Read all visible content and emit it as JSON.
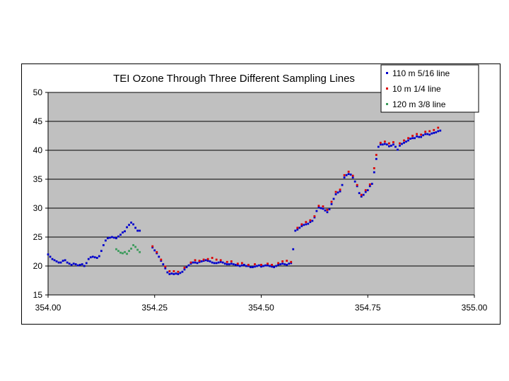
{
  "chart_data": {
    "type": "scatter",
    "title": "TEI Ozone Through Three Different Sampling Lines",
    "xlabel": "",
    "ylabel": "",
    "xlim": [
      354.0,
      355.0
    ],
    "ylim": [
      15,
      50
    ],
    "x_ticks": [
      "354.00",
      "354.25",
      "354.50",
      "354.75",
      "355.00"
    ],
    "y_ticks": [
      "15",
      "20",
      "25",
      "30",
      "35",
      "40",
      "45",
      "50"
    ],
    "grid": "horizontal",
    "legend_position": "top-right",
    "plot_background": "#c0c0c0",
    "series": [
      {
        "name": "110 m 5/16 line",
        "color": "#0000cc",
        "points": [
          [
            354.0,
            22.0
          ],
          [
            354.005,
            21.6
          ],
          [
            354.01,
            21.2
          ],
          [
            354.015,
            21.0
          ],
          [
            354.02,
            20.8
          ],
          [
            354.025,
            20.6
          ],
          [
            354.03,
            20.6
          ],
          [
            354.035,
            20.9
          ],
          [
            354.04,
            21.0
          ],
          [
            354.045,
            20.6
          ],
          [
            354.05,
            20.4
          ],
          [
            354.055,
            20.2
          ],
          [
            354.06,
            20.4
          ],
          [
            354.065,
            20.3
          ],
          [
            354.07,
            20.1
          ],
          [
            354.075,
            20.2
          ],
          [
            354.08,
            20.3
          ],
          [
            354.085,
            20.0
          ],
          [
            354.09,
            20.5
          ],
          [
            354.095,
            21.2
          ],
          [
            354.1,
            21.5
          ],
          [
            354.105,
            21.6
          ],
          [
            354.11,
            21.5
          ],
          [
            354.115,
            21.4
          ],
          [
            354.12,
            21.7
          ],
          [
            354.125,
            22.6
          ],
          [
            354.13,
            23.6
          ],
          [
            354.135,
            24.4
          ],
          [
            354.14,
            24.8
          ],
          [
            354.145,
            24.9
          ],
          [
            354.15,
            25.0
          ],
          [
            354.155,
            24.9
          ],
          [
            354.16,
            24.8
          ],
          [
            354.165,
            25.1
          ],
          [
            354.17,
            25.4
          ],
          [
            354.175,
            25.8
          ],
          [
            354.18,
            26.0
          ],
          [
            354.185,
            26.7
          ],
          [
            354.19,
            27.1
          ],
          [
            354.195,
            27.5
          ],
          [
            354.2,
            27.2
          ],
          [
            354.205,
            26.6
          ],
          [
            354.21,
            26.1
          ],
          [
            354.215,
            26.1
          ],
          [
            354.245,
            23.2
          ],
          [
            354.25,
            22.7
          ],
          [
            354.255,
            22.2
          ],
          [
            354.26,
            21.6
          ],
          [
            354.265,
            20.9
          ],
          [
            354.27,
            20.3
          ],
          [
            354.275,
            19.6
          ],
          [
            354.28,
            18.9
          ],
          [
            354.285,
            18.6
          ],
          [
            354.29,
            18.7
          ],
          [
            354.295,
            18.6
          ],
          [
            354.3,
            18.7
          ],
          [
            354.305,
            18.6
          ],
          [
            354.31,
            18.8
          ],
          [
            354.315,
            19.0
          ],
          [
            354.32,
            19.4
          ],
          [
            354.325,
            19.8
          ],
          [
            354.33,
            20.1
          ],
          [
            354.335,
            20.4
          ],
          [
            354.34,
            20.6
          ],
          [
            354.345,
            20.6
          ],
          [
            354.35,
            20.5
          ],
          [
            354.355,
            20.7
          ],
          [
            354.36,
            20.8
          ],
          [
            354.365,
            20.9
          ],
          [
            354.37,
            21.0
          ],
          [
            354.375,
            20.9
          ],
          [
            354.38,
            20.8
          ],
          [
            354.385,
            20.6
          ],
          [
            354.39,
            20.5
          ],
          [
            354.395,
            20.5
          ],
          [
            354.4,
            20.6
          ],
          [
            354.405,
            20.7
          ],
          [
            354.41,
            20.6
          ],
          [
            354.415,
            20.4
          ],
          [
            354.42,
            20.3
          ],
          [
            354.425,
            20.3
          ],
          [
            354.43,
            20.4
          ],
          [
            354.435,
            20.3
          ],
          [
            354.44,
            20.2
          ],
          [
            354.445,
            20.1
          ],
          [
            354.45,
            20.0
          ],
          [
            354.455,
            20.1
          ],
          [
            354.46,
            20.2
          ],
          [
            354.465,
            20.0
          ],
          [
            354.47,
            20.0
          ],
          [
            354.475,
            19.8
          ],
          [
            354.48,
            19.8
          ],
          [
            354.485,
            19.9
          ],
          [
            354.49,
            20.0
          ],
          [
            354.495,
            20.1
          ],
          [
            354.5,
            19.9
          ],
          [
            354.505,
            20.0
          ],
          [
            354.51,
            20.1
          ],
          [
            354.515,
            20.1
          ],
          [
            354.52,
            20.0
          ],
          [
            354.525,
            19.9
          ],
          [
            354.53,
            19.8
          ],
          [
            354.535,
            20.0
          ],
          [
            354.54,
            20.2
          ],
          [
            354.545,
            20.3
          ],
          [
            354.55,
            20.4
          ],
          [
            354.555,
            20.3
          ],
          [
            354.56,
            20.2
          ],
          [
            354.565,
            20.4
          ],
          [
            354.57,
            20.5
          ],
          [
            354.575,
            22.9
          ],
          [
            354.58,
            26.1
          ],
          [
            354.585,
            26.3
          ],
          [
            354.59,
            26.6
          ],
          [
            354.595,
            26.9
          ],
          [
            354.6,
            27.1
          ],
          [
            354.605,
            27.2
          ],
          [
            354.61,
            27.3
          ],
          [
            354.615,
            27.6
          ],
          [
            354.62,
            27.8
          ],
          [
            354.625,
            28.4
          ],
          [
            354.63,
            29.5
          ],
          [
            354.635,
            30.1
          ],
          [
            354.64,
            30.0
          ],
          [
            354.645,
            29.9
          ],
          [
            354.65,
            29.6
          ],
          [
            354.655,
            29.3
          ],
          [
            354.66,
            29.8
          ],
          [
            354.665,
            30.7
          ],
          [
            354.67,
            31.6
          ],
          [
            354.675,
            32.4
          ],
          [
            354.68,
            32.7
          ],
          [
            354.685,
            32.9
          ],
          [
            354.69,
            34.0
          ],
          [
            354.695,
            35.3
          ],
          [
            354.7,
            35.7
          ],
          [
            354.705,
            35.9
          ],
          [
            354.71,
            35.8
          ],
          [
            354.715,
            35.3
          ],
          [
            354.72,
            34.6
          ],
          [
            354.725,
            33.8
          ],
          [
            354.73,
            32.6
          ],
          [
            354.735,
            32.0
          ],
          [
            354.74,
            32.3
          ],
          [
            354.745,
            32.8
          ],
          [
            354.75,
            33.1
          ],
          [
            354.755,
            33.8
          ],
          [
            354.76,
            34.2
          ],
          [
            354.765,
            36.2
          ],
          [
            354.77,
            38.5
          ],
          [
            354.775,
            40.6
          ],
          [
            354.78,
            41.0
          ],
          [
            354.785,
            41.0
          ],
          [
            354.79,
            41.1
          ],
          [
            354.795,
            41.0
          ],
          [
            354.8,
            40.7
          ],
          [
            354.805,
            40.8
          ],
          [
            354.81,
            41.0
          ],
          [
            354.815,
            40.6
          ],
          [
            354.82,
            40.1
          ],
          [
            354.825,
            40.8
          ],
          [
            354.83,
            41.1
          ],
          [
            354.835,
            41.3
          ],
          [
            354.84,
            41.5
          ],
          [
            354.845,
            41.7
          ],
          [
            354.85,
            42.0
          ],
          [
            354.855,
            42.1
          ],
          [
            354.86,
            42.1
          ],
          [
            354.865,
            42.4
          ],
          [
            354.87,
            42.3
          ],
          [
            354.875,
            42.3
          ],
          [
            354.88,
            42.6
          ],
          [
            354.885,
            42.8
          ],
          [
            354.89,
            42.8
          ],
          [
            354.895,
            42.7
          ],
          [
            354.9,
            42.9
          ],
          [
            354.905,
            43.0
          ],
          [
            354.91,
            43.1
          ],
          [
            354.915,
            43.3
          ],
          [
            354.92,
            43.4
          ]
        ]
      },
      {
        "name": "10 m 1/4 line",
        "color": "#dd0000",
        "points": [
          [
            354.245,
            23.4
          ],
          [
            354.255,
            22.4
          ],
          [
            354.265,
            21.1
          ],
          [
            354.275,
            19.9
          ],
          [
            354.285,
            19.1
          ],
          [
            354.295,
            19.1
          ],
          [
            354.305,
            19.0
          ],
          [
            354.32,
            19.7
          ],
          [
            354.335,
            20.6
          ],
          [
            354.345,
            21.0
          ],
          [
            354.355,
            20.9
          ],
          [
            354.365,
            21.1
          ],
          [
            354.375,
            21.2
          ],
          [
            354.385,
            21.4
          ],
          [
            354.395,
            21.1
          ],
          [
            354.405,
            21.0
          ],
          [
            354.42,
            20.7
          ],
          [
            354.43,
            20.8
          ],
          [
            354.445,
            20.4
          ],
          [
            354.455,
            20.5
          ],
          [
            354.47,
            20.2
          ],
          [
            354.485,
            20.3
          ],
          [
            354.5,
            20.2
          ],
          [
            354.515,
            20.4
          ],
          [
            354.525,
            20.2
          ],
          [
            354.54,
            20.5
          ],
          [
            354.55,
            20.8
          ],
          [
            354.56,
            20.9
          ],
          [
            354.57,
            20.7
          ],
          [
            354.585,
            26.6
          ],
          [
            354.595,
            27.2
          ],
          [
            354.605,
            27.6
          ],
          [
            354.615,
            27.9
          ],
          [
            354.625,
            28.6
          ],
          [
            354.635,
            30.4
          ],
          [
            354.645,
            30.3
          ],
          [
            354.655,
            29.7
          ],
          [
            354.665,
            31.1
          ],
          [
            354.675,
            32.8
          ],
          [
            354.685,
            33.2
          ],
          [
            354.695,
            35.7
          ],
          [
            354.705,
            36.3
          ],
          [
            354.715,
            35.6
          ],
          [
            354.725,
            34.0
          ],
          [
            354.735,
            32.3
          ],
          [
            354.745,
            33.1
          ],
          [
            354.755,
            34.1
          ],
          [
            354.765,
            36.9
          ],
          [
            354.77,
            39.2
          ],
          [
            354.78,
            41.3
          ],
          [
            354.79,
            41.5
          ],
          [
            354.8,
            41.2
          ],
          [
            354.81,
            41.4
          ],
          [
            354.825,
            41.2
          ],
          [
            354.835,
            41.7
          ],
          [
            354.845,
            42.1
          ],
          [
            354.855,
            42.5
          ],
          [
            354.865,
            42.8
          ],
          [
            354.875,
            42.7
          ],
          [
            354.885,
            43.2
          ],
          [
            354.895,
            43.3
          ],
          [
            354.905,
            43.5
          ],
          [
            354.915,
            43.9
          ]
        ]
      },
      {
        "name": "120 m 3/8 line",
        "color": "#3a9a5a",
        "points": [
          [
            354.16,
            22.9
          ],
          [
            354.165,
            22.6
          ],
          [
            354.17,
            22.3
          ],
          [
            354.175,
            22.2
          ],
          [
            354.18,
            22.4
          ],
          [
            354.185,
            22.1
          ],
          [
            354.19,
            22.6
          ],
          [
            354.195,
            23.0
          ],
          [
            354.2,
            23.6
          ],
          [
            354.205,
            23.3
          ],
          [
            354.21,
            22.8
          ],
          [
            354.215,
            22.4
          ]
        ]
      }
    ]
  }
}
